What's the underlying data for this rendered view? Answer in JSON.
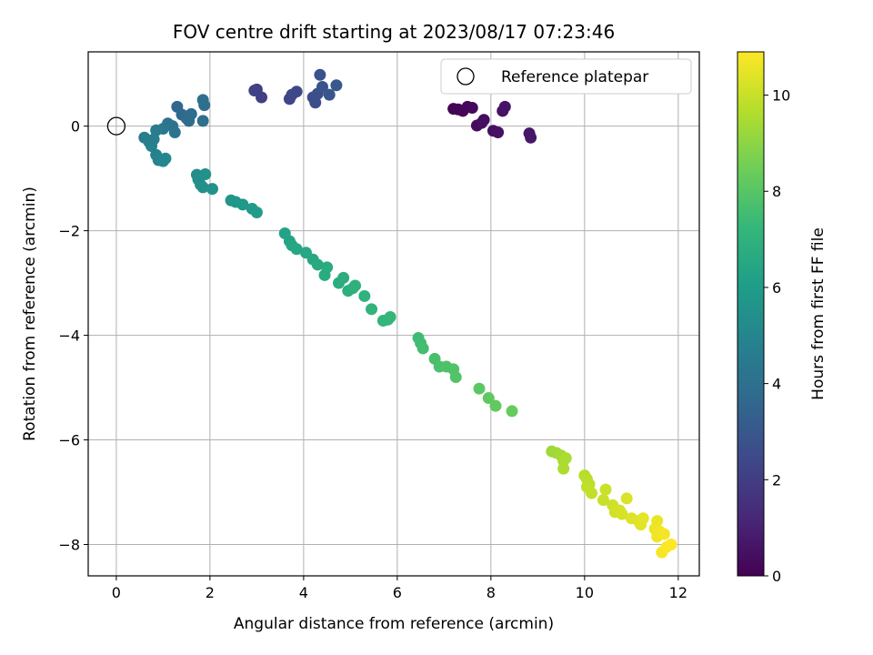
{
  "chart_data": {
    "type": "scatter",
    "title": "FOV centre drift starting at 2023/08/17 07:23:46",
    "xlabel": "Angular distance from reference (arcmin)",
    "ylabel": "Rotation from reference (arcmin)",
    "xlim": [
      -0.6,
      12.45
    ],
    "ylim": [
      -8.6,
      1.42
    ],
    "xticks": [
      0,
      2,
      4,
      6,
      8,
      10,
      12
    ],
    "xtick_labels": [
      "0",
      "2",
      "4",
      "6",
      "8",
      "10",
      "12"
    ],
    "yticks": [
      0,
      -2,
      -4,
      -6,
      -8
    ],
    "ytick_labels": [
      "0",
      "−2",
      "−4",
      "−6",
      "−8"
    ],
    "grid": true,
    "legend": {
      "position": "top-right",
      "entries": [
        "Reference platepar"
      ]
    },
    "reference_point": {
      "x": 0,
      "y": 0
    },
    "colorbar": {
      "label": "Hours from first FF file",
      "range": [
        0,
        10.9
      ],
      "ticks": [
        0,
        2,
        4,
        6,
        8,
        10
      ],
      "tick_labels": [
        "0",
        "2",
        "4",
        "6",
        "8",
        "10"
      ],
      "colormap": [
        "#440154",
        "#482878",
        "#3e4989",
        "#31688e",
        "#26828e",
        "#1f9e89",
        "#35b779",
        "#6ece58",
        "#b5de2b",
        "#fde725"
      ]
    },
    "points": [
      [
        7.2,
        0.33,
        0.05
      ],
      [
        7.3,
        0.32,
        0.1
      ],
      [
        7.4,
        0.29,
        0.15
      ],
      [
        7.5,
        0.37,
        0.2
      ],
      [
        7.6,
        0.35,
        0.25
      ],
      [
        7.7,
        0.01,
        0.3
      ],
      [
        7.85,
        0.12,
        0.35
      ],
      [
        7.8,
        0.06,
        0.4
      ],
      [
        8.05,
        -0.09,
        0.45
      ],
      [
        8.15,
        -0.12,
        0.5
      ],
      [
        8.25,
        0.29,
        0.55
      ],
      [
        8.3,
        0.37,
        0.6
      ],
      [
        8.82,
        -0.14,
        0.65
      ],
      [
        8.85,
        -0.22,
        0.7
      ],
      [
        3.0,
        0.7,
        2.0
      ],
      [
        3.1,
        0.55,
        2.1
      ],
      [
        2.95,
        0.68,
        2.15
      ],
      [
        3.7,
        0.52,
        2.3
      ],
      [
        3.75,
        0.6,
        2.35
      ],
      [
        3.85,
        0.66,
        2.4
      ],
      [
        4.2,
        0.55,
        2.6
      ],
      [
        4.25,
        0.45,
        2.65
      ],
      [
        4.3,
        0.62,
        2.7
      ],
      [
        4.35,
        0.98,
        2.75
      ],
      [
        4.4,
        0.75,
        2.8
      ],
      [
        4.55,
        0.6,
        2.9
      ],
      [
        4.7,
        0.78,
        3.0
      ],
      [
        1.3,
        0.37,
        3.6
      ],
      [
        1.4,
        0.22,
        3.7
      ],
      [
        1.5,
        0.15,
        3.75
      ],
      [
        1.6,
        0.23,
        3.8
      ],
      [
        1.55,
        0.1,
        3.85
      ],
      [
        1.85,
        0.5,
        3.9
      ],
      [
        1.88,
        0.4,
        3.95
      ],
      [
        1.85,
        0.1,
        4.0
      ],
      [
        1.1,
        0.05,
        4.1
      ],
      [
        1.2,
        0.0,
        4.2
      ],
      [
        1.25,
        -0.12,
        4.3
      ],
      [
        1.0,
        -0.05,
        4.4
      ],
      [
        0.85,
        -0.08,
        4.5
      ],
      [
        0.6,
        -0.22,
        4.6
      ],
      [
        0.7,
        -0.3,
        4.7
      ],
      [
        0.75,
        -0.38,
        4.75
      ],
      [
        0.85,
        -0.55,
        4.8
      ],
      [
        0.9,
        -0.65,
        4.9
      ],
      [
        1.0,
        -0.67,
        5.0
      ],
      [
        1.05,
        -0.62,
        5.05
      ],
      [
        0.8,
        -0.25,
        4.65
      ],
      [
        1.72,
        -0.93,
        5.3
      ],
      [
        1.75,
        -1.02,
        5.35
      ],
      [
        1.8,
        -1.12,
        5.4
      ],
      [
        1.85,
        -1.17,
        5.45
      ],
      [
        1.9,
        -0.92,
        5.5
      ],
      [
        2.05,
        -1.2,
        5.55
      ],
      [
        2.45,
        -1.42,
        5.7
      ],
      [
        2.55,
        -1.45,
        5.75
      ],
      [
        2.7,
        -1.5,
        5.8
      ],
      [
        2.9,
        -1.58,
        5.9
      ],
      [
        3.0,
        -1.65,
        5.95
      ],
      [
        3.6,
        -2.05,
        6.3
      ],
      [
        3.7,
        -2.2,
        6.35
      ],
      [
        3.75,
        -2.28,
        6.4
      ],
      [
        3.85,
        -2.35,
        6.45
      ],
      [
        4.05,
        -2.42,
        6.5
      ],
      [
        4.2,
        -2.55,
        6.55
      ],
      [
        4.3,
        -2.65,
        6.6
      ],
      [
        4.5,
        -2.7,
        6.65
      ],
      [
        4.45,
        -2.85,
        6.7
      ],
      [
        4.75,
        -3.0,
        6.75
      ],
      [
        4.85,
        -2.9,
        6.8
      ],
      [
        4.95,
        -3.15,
        6.85
      ],
      [
        5.05,
        -3.1,
        6.9
      ],
      [
        5.1,
        -3.05,
        6.95
      ],
      [
        5.3,
        -3.25,
        7.0
      ],
      [
        5.45,
        -3.5,
        7.05
      ],
      [
        5.7,
        -3.72,
        7.1
      ],
      [
        5.8,
        -3.7,
        7.15
      ],
      [
        5.85,
        -3.65,
        7.2
      ],
      [
        6.45,
        -4.05,
        7.5
      ],
      [
        6.5,
        -4.15,
        7.55
      ],
      [
        6.55,
        -4.25,
        7.6
      ],
      [
        6.8,
        -4.45,
        7.7
      ],
      [
        6.9,
        -4.6,
        7.75
      ],
      [
        7.05,
        -4.6,
        7.8
      ],
      [
        7.2,
        -4.65,
        7.85
      ],
      [
        7.25,
        -4.8,
        7.9
      ],
      [
        7.75,
        -5.02,
        8.1
      ],
      [
        7.95,
        -5.2,
        8.15
      ],
      [
        8.1,
        -5.35,
        8.2
      ],
      [
        8.45,
        -5.45,
        8.3
      ],
      [
        9.3,
        -6.22,
        9.3
      ],
      [
        9.4,
        -6.25,
        9.35
      ],
      [
        9.5,
        -6.3,
        9.4
      ],
      [
        9.55,
        -6.4,
        9.45
      ],
      [
        9.6,
        -6.35,
        9.5
      ],
      [
        9.55,
        -6.55,
        9.55
      ],
      [
        10.0,
        -6.68,
        9.7
      ],
      [
        10.05,
        -6.75,
        9.75
      ],
      [
        10.1,
        -6.85,
        9.8
      ],
      [
        10.05,
        -6.9,
        9.85
      ],
      [
        10.15,
        -7.02,
        9.9
      ],
      [
        10.4,
        -7.15,
        10.0
      ],
      [
        10.45,
        -6.95,
        10.05
      ],
      [
        10.6,
        -7.25,
        10.1
      ],
      [
        10.65,
        -7.38,
        10.15
      ],
      [
        10.75,
        -7.35,
        10.2
      ],
      [
        10.8,
        -7.42,
        10.25
      ],
      [
        10.9,
        -7.12,
        10.3
      ],
      [
        11.0,
        -7.5,
        10.35
      ],
      [
        11.15,
        -7.55,
        10.4
      ],
      [
        11.2,
        -7.62,
        10.45
      ],
      [
        11.25,
        -7.5,
        10.5
      ],
      [
        11.5,
        -7.7,
        10.6
      ],
      [
        11.55,
        -7.55,
        10.62
      ],
      [
        11.55,
        -7.85,
        10.65
      ],
      [
        11.6,
        -7.75,
        10.7
      ],
      [
        11.7,
        -7.8,
        10.75
      ],
      [
        11.65,
        -8.15,
        10.8
      ],
      [
        11.75,
        -8.05,
        10.85
      ],
      [
        11.85,
        -8.0,
        10.9
      ]
    ]
  }
}
